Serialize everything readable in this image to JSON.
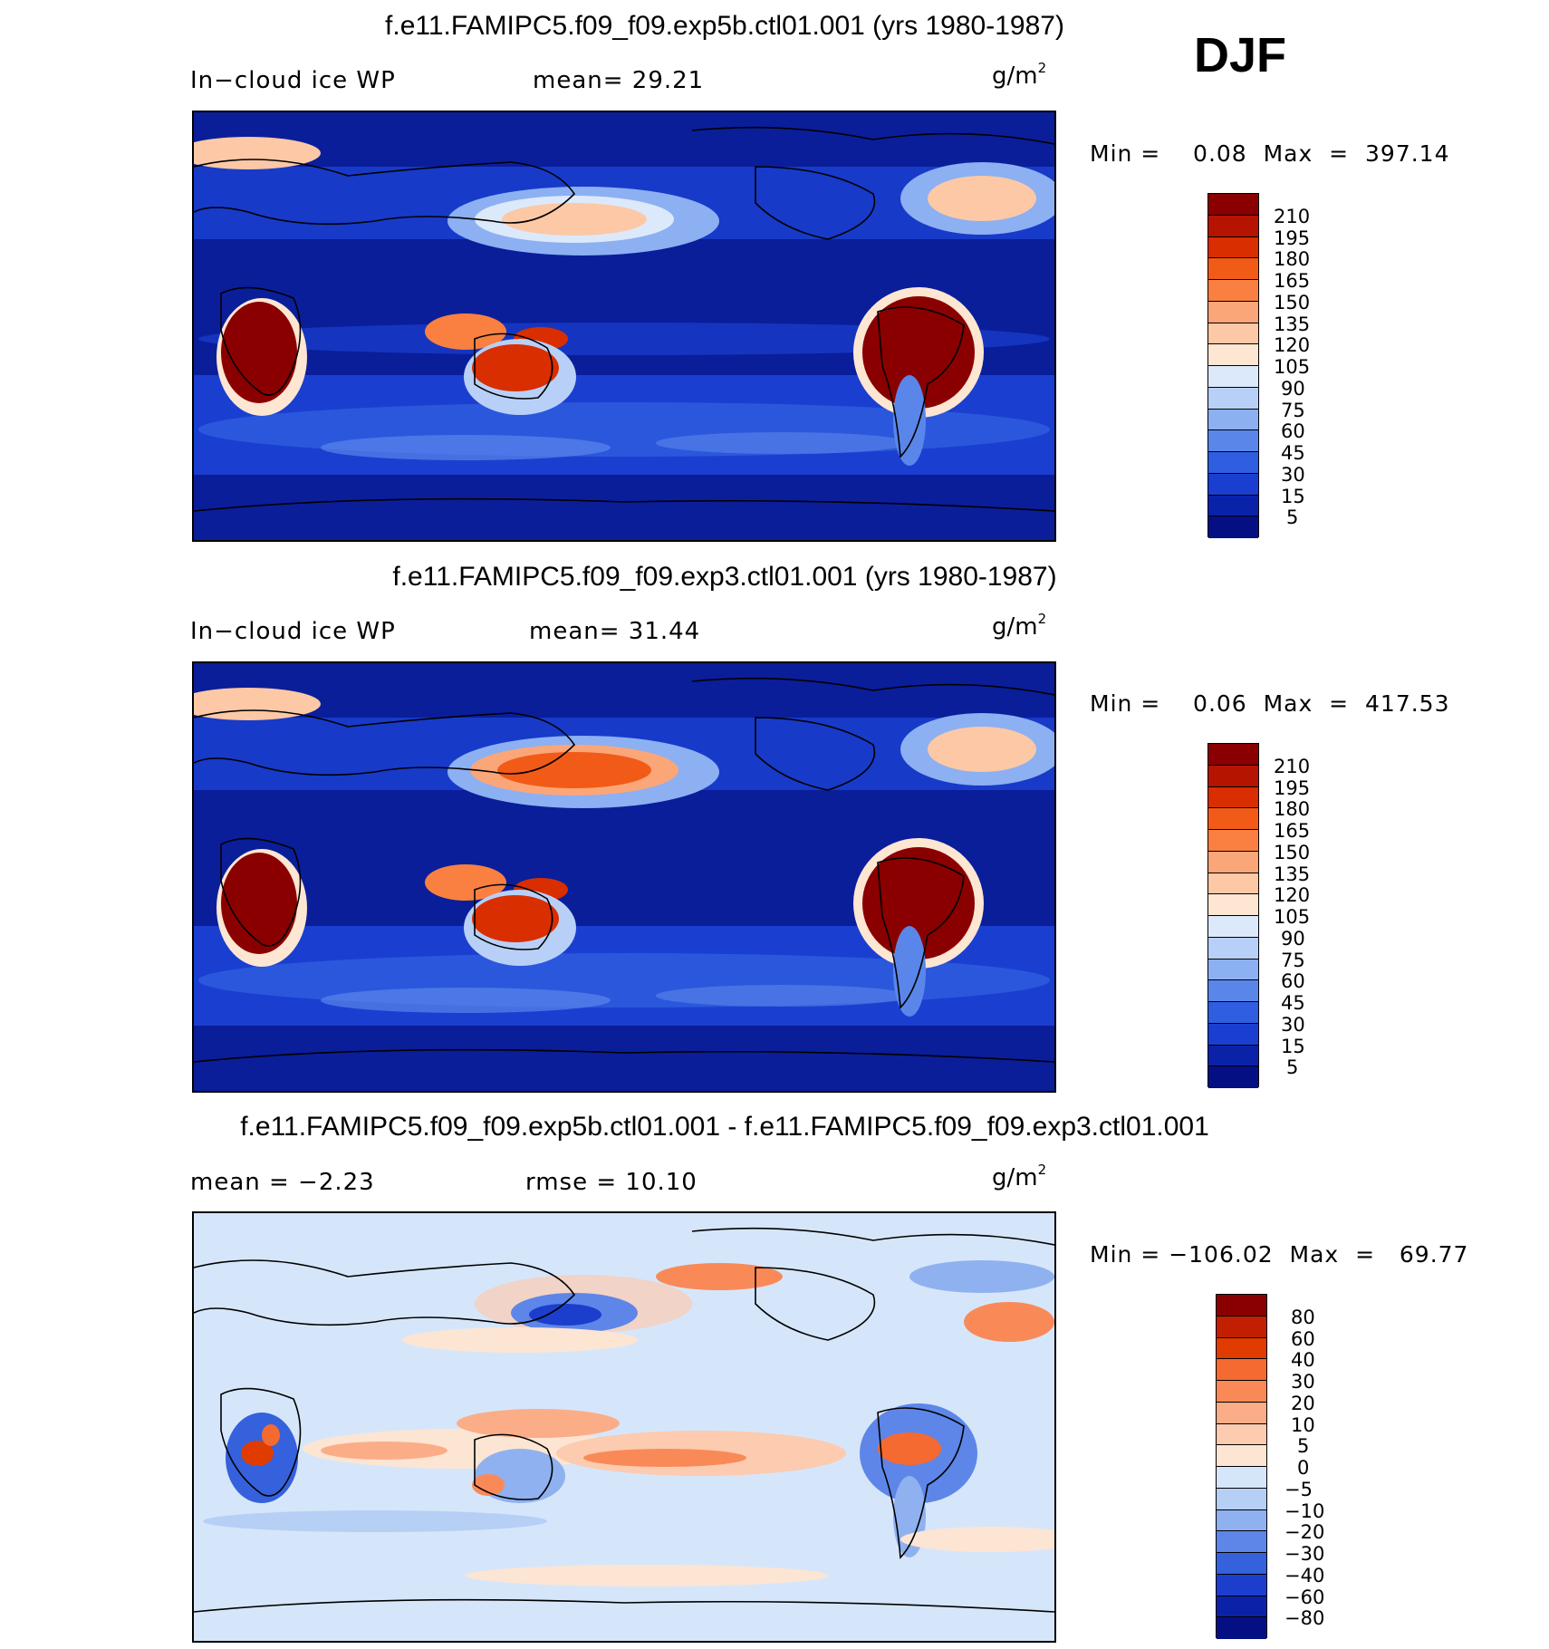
{
  "season": "DJF",
  "panels": [
    {
      "title": "f.e11.FAMIPC5.f09_f09.exp5b.ctl01.001 (yrs 1980-1987)",
      "left_label": "In−cloud ice WP",
      "center_label": "mean=   29.21",
      "units": "g/m",
      "units_sup": "2",
      "minmax": "Min =    0.08  Max  =  397.14",
      "bg_color": "#0a1e9a",
      "levels": [
        "210",
        "195",
        "180",
        "165",
        "150",
        "135",
        "120",
        "105",
        "90",
        "75",
        "60",
        "45",
        "30",
        "15",
        "5"
      ]
    },
    {
      "title": "f.e11.FAMIPC5.f09_f09.exp3.ctl01.001 (yrs 1980-1987)",
      "left_label": "In−cloud ice WP",
      "center_label": "mean=   31.44",
      "units": "g/m",
      "units_sup": "2",
      "minmax": "Min =    0.06  Max  =  417.53",
      "bg_color": "#0a1e9a",
      "levels": [
        "210",
        "195",
        "180",
        "165",
        "150",
        "135",
        "120",
        "105",
        "90",
        "75",
        "60",
        "45",
        "30",
        "15",
        "5"
      ]
    },
    {
      "title": "f.e11.FAMIPC5.f09_f09.exp5b.ctl01.001 - f.e11.FAMIPC5.f09_f09.exp3.ctl01.001",
      "left_label": "mean =   −2.23",
      "center_label": "rmse  =    10.10",
      "units": "g/m",
      "units_sup": "2",
      "minmax": "Min = −106.02  Max  =   69.77",
      "bg_color": "#d6e6fa",
      "levels": [
        "80",
        "60",
        "40",
        "30",
        "20",
        "10",
        "5",
        "0",
        "−5",
        "−10",
        "−20",
        "−30",
        "−40",
        "−60",
        "−80"
      ]
    }
  ],
  "colors": {
    "abs_scale": [
      "#8a0000",
      "#b41400",
      "#d82e00",
      "#f25a18",
      "#f98040",
      "#fba678",
      "#fcc8a6",
      "#fde6d2",
      "#dce9fb",
      "#b8d0f7",
      "#8cb0f2",
      "#5a86ea",
      "#2f5ee0",
      "#1a3fd0",
      "#0a22a8",
      "#050f84"
    ],
    "diff_scale": [
      "#8a0000",
      "#c21e00",
      "#e03c00",
      "#f46a30",
      "#f98a58",
      "#fbad88",
      "#fccbb0",
      "#fde5d3",
      "#d6e6fa",
      "#b6cff5",
      "#8fb1f0",
      "#5d86e8",
      "#3561dc",
      "#1b3fcc",
      "#0a22a8",
      "#050f84"
    ]
  }
}
